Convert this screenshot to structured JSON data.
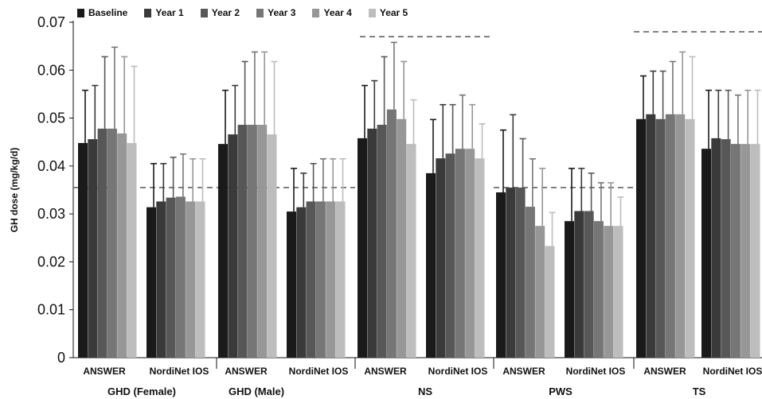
{
  "chart_data": {
    "type": "bar",
    "title": "",
    "ylabel": "GH dose (mg/kg/d)",
    "xlabel": "",
    "ylim": [
      0,
      0.07
    ],
    "yticks": [
      0,
      0.01,
      0.02,
      0.03,
      0.04,
      0.05,
      0.06,
      0.07
    ],
    "ytick_labels": [
      "0",
      "0.01",
      "0.02",
      "0.03",
      "0.04",
      "0.05",
      "0.06",
      "0.07"
    ],
    "groups": [
      "GHD (Female)",
      "GHD (Male)",
      "NS",
      "PWS",
      "TS"
    ],
    "subgroups": [
      "ANSWER",
      "NordiNet IOS"
    ],
    "categories": [
      "GHD (Female) ANSWER",
      "GHD (Female) NordiNet IOS",
      "GHD (Male) ANSWER",
      "GHD (Male) NordiNet IOS",
      "NS ANSWER",
      "NS NordiNet IOS",
      "PWS ANSWER",
      "PWS NordiNet IOS",
      "TS ANSWER",
      "TS NordiNet IOS"
    ],
    "series": [
      {
        "name": "Baseline",
        "color": "#1a1a1a",
        "values": [
          0.0448,
          0.0314,
          0.0446,
          0.0305,
          0.0458,
          0.0385,
          0.0345,
          0.0285,
          0.0498,
          0.0436
        ],
        "errors": [
          0.0558,
          0.0405,
          0.0558,
          0.0395,
          0.0568,
          0.0497,
          0.0475,
          0.0395,
          0.0588,
          0.0558
        ]
      },
      {
        "name": "Year 1",
        "color": "#3a3a3a",
        "values": [
          0.0456,
          0.0326,
          0.0466,
          0.0314,
          0.0478,
          0.0416,
          0.0355,
          0.0306,
          0.0508,
          0.0458
        ],
        "errors": [
          0.0568,
          0.0405,
          0.0568,
          0.0385,
          0.0578,
          0.0528,
          0.0507,
          0.0395,
          0.0598,
          0.0558
        ]
      },
      {
        "name": "Year 2",
        "color": "#575757",
        "values": [
          0.0478,
          0.0334,
          0.0486,
          0.0326,
          0.0486,
          0.0426,
          0.0355,
          0.0306,
          0.0498,
          0.0456
        ],
        "errors": [
          0.0628,
          0.0418,
          0.0618,
          0.0405,
          0.0628,
          0.0528,
          0.0457,
          0.0385,
          0.0598,
          0.0558
        ]
      },
      {
        "name": "Year 3",
        "color": "#767676",
        "values": [
          0.0478,
          0.0336,
          0.0486,
          0.0326,
          0.0518,
          0.0436,
          0.0315,
          0.0285,
          0.0508,
          0.0446
        ],
        "errors": [
          0.0648,
          0.0425,
          0.0638,
          0.0415,
          0.0658,
          0.0548,
          0.0415,
          0.0365,
          0.0618,
          0.0548
        ]
      },
      {
        "name": "Year 4",
        "color": "#979797",
        "values": [
          0.0468,
          0.0326,
          0.0486,
          0.0326,
          0.0498,
          0.0436,
          0.0275,
          0.0275,
          0.0508,
          0.0446
        ],
        "errors": [
          0.0628,
          0.0415,
          0.0638,
          0.0415,
          0.0618,
          0.0528,
          0.0395,
          0.0365,
          0.0638,
          0.0558
        ]
      },
      {
        "name": "Year 5",
        "color": "#bdbdbd",
        "values": [
          0.0448,
          0.0326,
          0.0466,
          0.0326,
          0.0446,
          0.0416,
          0.0233,
          0.0275,
          0.0498,
          0.0446
        ],
        "errors": [
          0.0608,
          0.0415,
          0.0618,
          0.0415,
          0.0538,
          0.0488,
          0.0303,
          0.0335,
          0.0628,
          0.0558
        ]
      }
    ],
    "reference_lines": [
      {
        "group": "GHD (Female)",
        "value": 0.0355
      },
      {
        "group": "GHD (Male)",
        "value": 0.0355
      },
      {
        "group": "NS",
        "value": 0.067
      },
      {
        "group": "PWS",
        "value": 0.0355
      },
      {
        "group": "TS",
        "value": 0.068
      }
    ],
    "grid": false,
    "legend_position": "top-left"
  }
}
